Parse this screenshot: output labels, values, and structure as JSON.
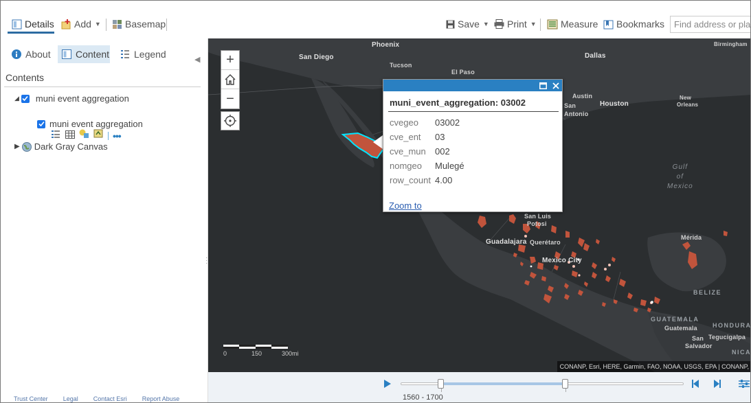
{
  "toolbar": {
    "details_label": "Details",
    "add_label": "Add",
    "basemap_label": "Basemap",
    "save_label": "Save",
    "print_label": "Print",
    "measure_label": "Measure",
    "bookmarks_label": "Bookmarks",
    "search_placeholder": "Find address or plac"
  },
  "left_panel": {
    "tabs": [
      {
        "label": "About"
      },
      {
        "label": "Content"
      },
      {
        "label": "Legend"
      }
    ],
    "contents_title": "Contents",
    "layers": [
      {
        "label": "muni event aggregation",
        "checked": true
      },
      {
        "label": "muni event aggregation",
        "checked": true
      },
      {
        "label": "Dark Gray Canvas"
      }
    ],
    "footer": [
      "Trust Center",
      "Legal",
      "Contact Esri",
      "Report Abuse"
    ]
  },
  "map": {
    "cities": {
      "phoenix": "Phoenix",
      "san_diego": "San Diego",
      "dallas": "Dallas",
      "tucson": "Tucson",
      "el_paso": "El Paso",
      "birmingham": "Birmingham",
      "austin": "Austin",
      "san_antonio_1": "San",
      "san_antonio_2": "Antonio",
      "houston": "Houston",
      "new_orleans_1": "New",
      "new_orleans_2": "Orleans",
      "san_luis_1": "San Luis",
      "san_luis_2": "Potosi",
      "guadalajara": "Guadalajara",
      "queretaro": "Querétaro",
      "mexico_city": "Mexico City",
      "merida": "Mérida",
      "guatemala": "Guatemala",
      "tegucigalpa": "Tegucigalpa",
      "san_salvador_1": "San",
      "san_salvador_2": "Salvador"
    },
    "water": {
      "gulf_1": "Gulf",
      "gulf_2": "of",
      "gulf_3": "Mexico"
    },
    "countries": {
      "belize": "BELIZE",
      "guatemala": "GUATEMALA",
      "honduras": "HONDURAS",
      "nica": "NICA"
    },
    "scale": {
      "s0": "0",
      "s1": "150",
      "s2": "300mi"
    },
    "attribution": "CONANP, Esri, HERE, Garmin, FAO, NOAA, USGS, EPA | CONANP,",
    "colors": {
      "feature": "#c1543c",
      "highlight": "#00e5ff",
      "basemap": "#2b2e30",
      "land": "#3a3d40"
    }
  },
  "popup": {
    "title": "muni_event_aggregation: 03002",
    "attributes": [
      {
        "key": "cvegeo",
        "value": "03002"
      },
      {
        "key": "cve_ent",
        "value": "03"
      },
      {
        "key": "cve_mun",
        "value": "002"
      },
      {
        "key": "nomgeo",
        "value": "Mulegé"
      },
      {
        "key": "row_count",
        "value": "4.00"
      }
    ],
    "zoom_to": "Zoom to"
  },
  "time_slider": {
    "label": "1560 - 1700",
    "range_start_fraction": 0.14,
    "range_end_fraction": 0.58
  }
}
